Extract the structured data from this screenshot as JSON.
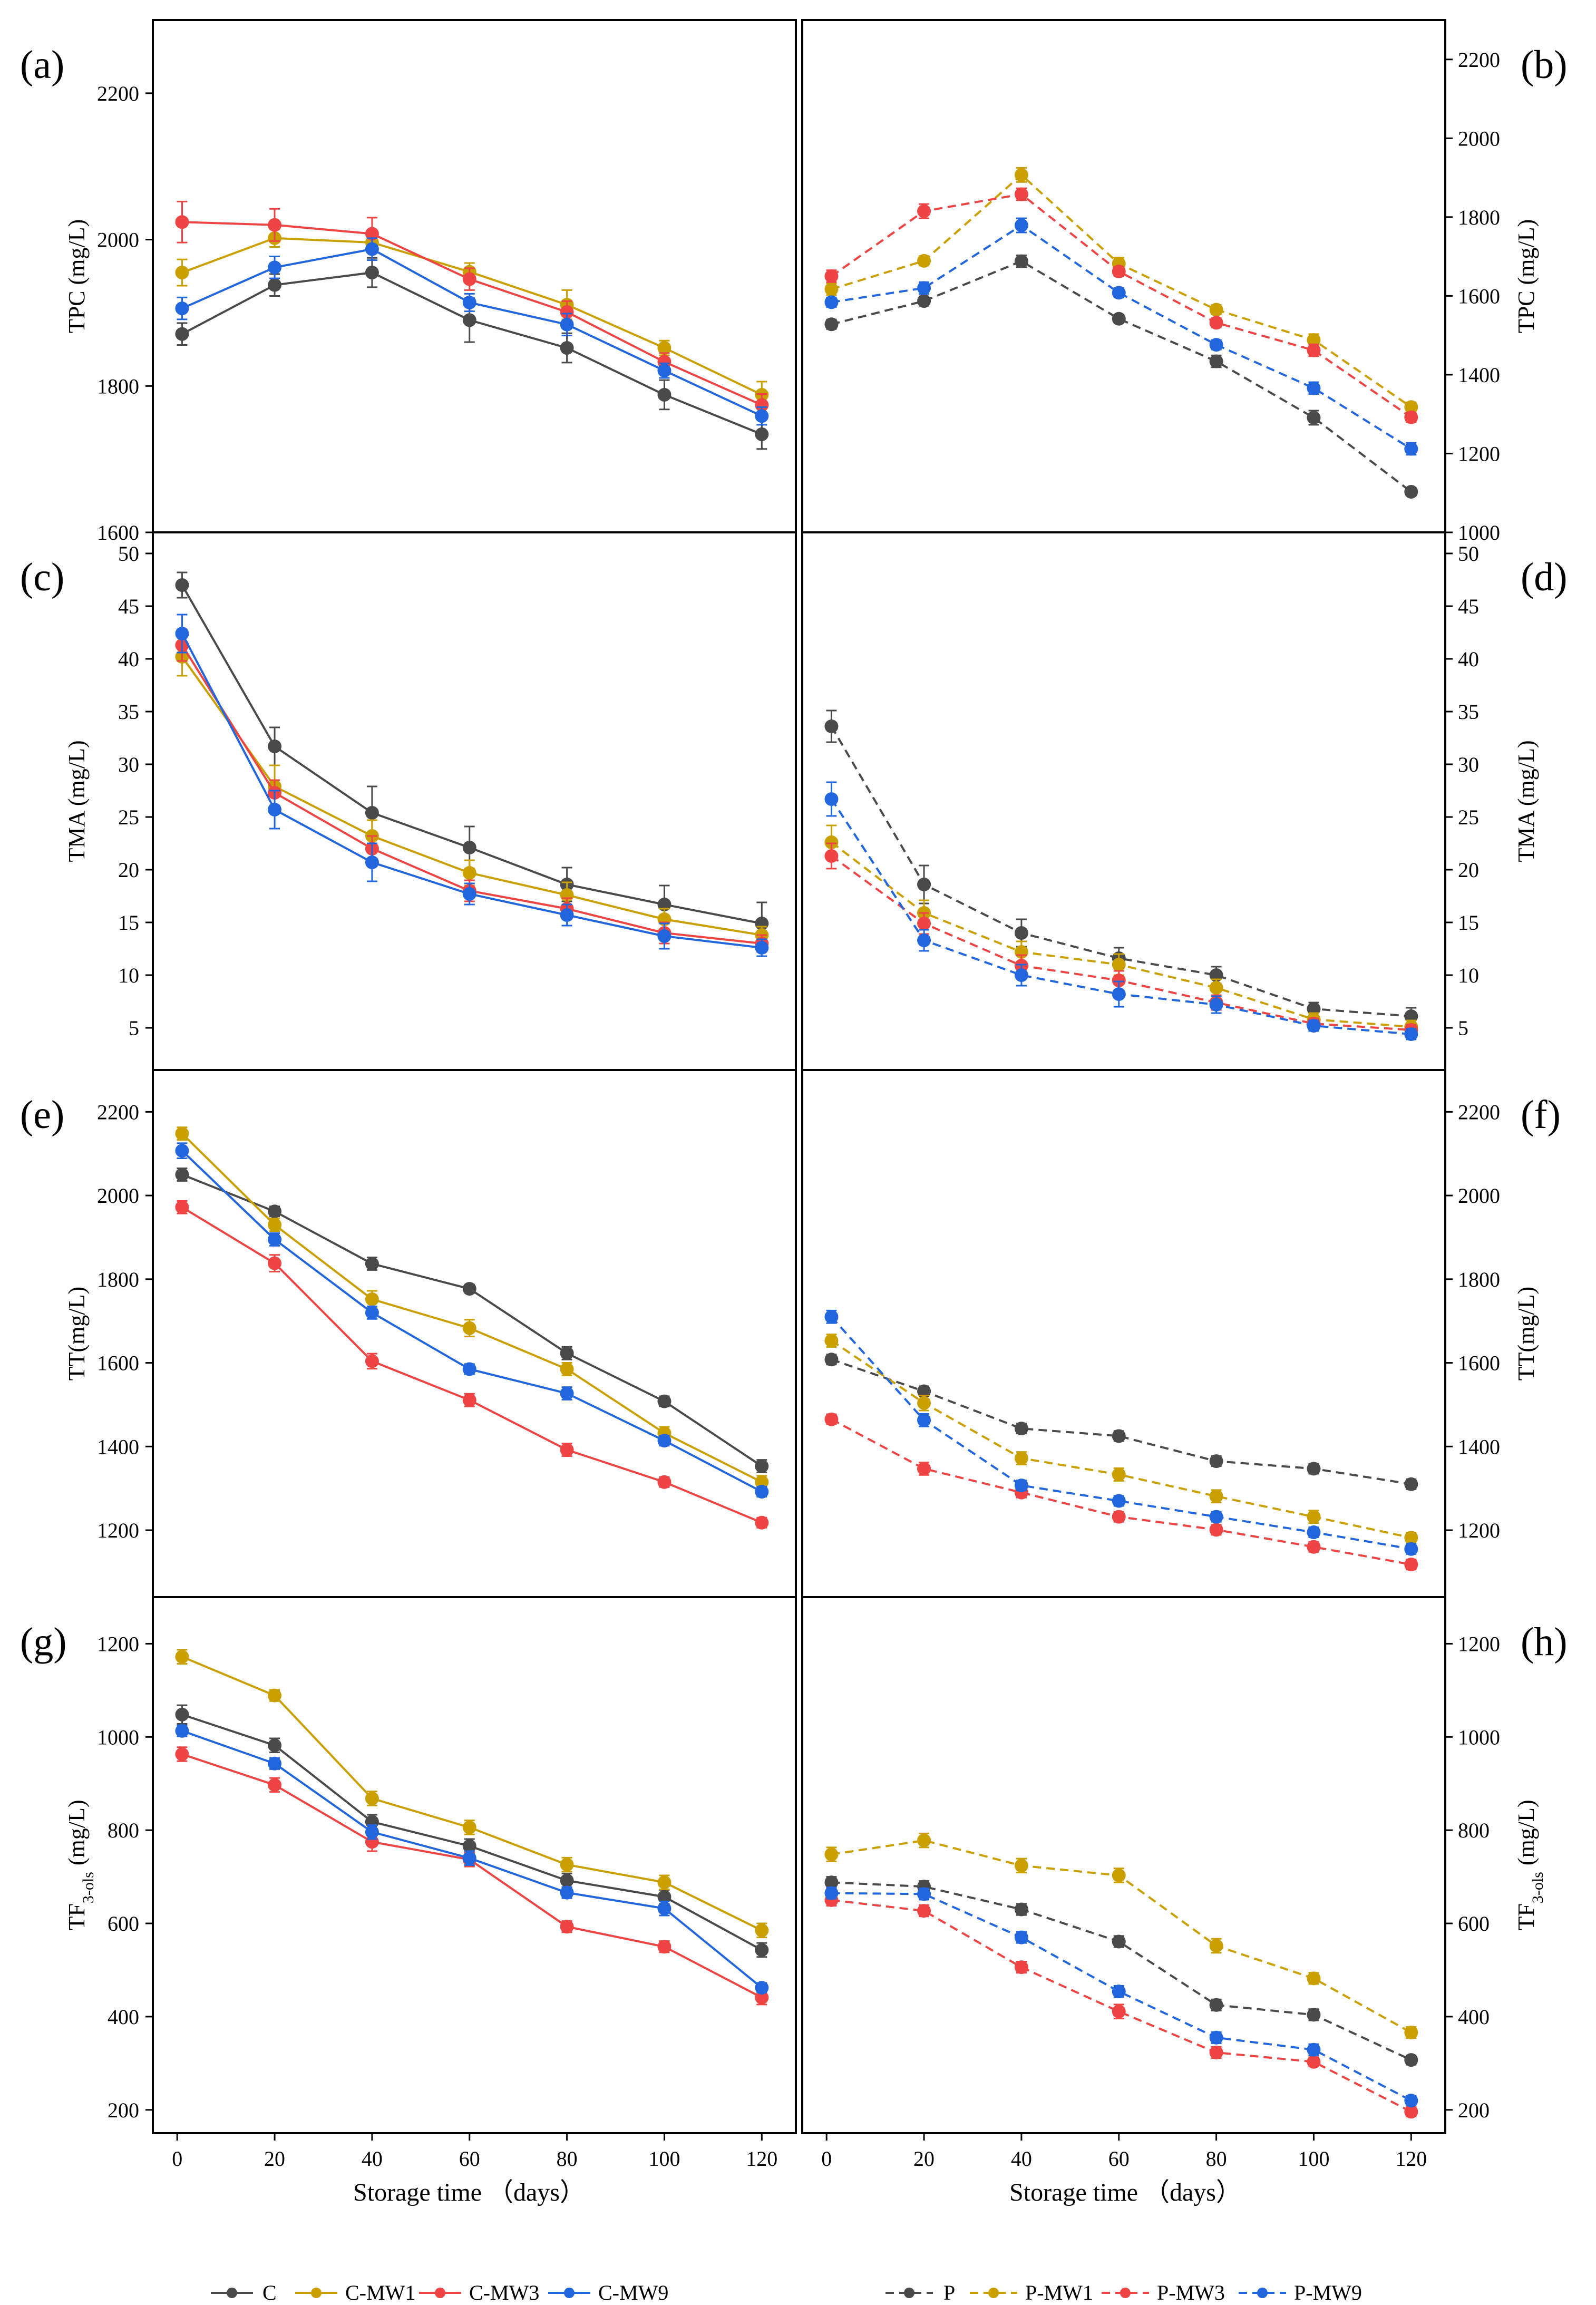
{
  "figure": {
    "x_label": "Storage time （days）",
    "x_ticks": [
      0,
      20,
      40,
      60,
      80,
      100,
      120
    ]
  },
  "legend_left": [
    "C",
    "C-MW1",
    "C-MW3",
    "C-MW9"
  ],
  "legend_right": [
    "P",
    "P-MW1",
    "P-MW3",
    "P-MW9"
  ],
  "colors": {
    "C": "#4a4a4a",
    "MW1": "#c9a000",
    "MW3": "#ee4444",
    "MW9": "#2266dd"
  },
  "chart_data": [
    {
      "panel": "(a)",
      "type": "line",
      "ylabel": "TPC (mg/L)",
      "line_style": "solid",
      "ylim": [
        1600,
        2300
      ],
      "yticks": [
        1600,
        1800,
        2000,
        2200
      ],
      "x": [
        1,
        20,
        40,
        60,
        80,
        100,
        120
      ],
      "series": [
        {
          "name": "C",
          "values": [
            1871,
            1938,
            1955,
            1890,
            1852,
            1788,
            1734
          ],
          "err": [
            15,
            15,
            20,
            30,
            20,
            20,
            20
          ]
        },
        {
          "name": "C-MW1",
          "values": [
            1955,
            2002,
            1996,
            1956,
            1911,
            1852,
            1788
          ],
          "err": [
            18,
            12,
            12,
            12,
            20,
            10,
            18
          ]
        },
        {
          "name": "C-MW3",
          "values": [
            2024,
            2020,
            2008,
            1946,
            1901,
            1833,
            1774
          ],
          "err": [
            28,
            22,
            22,
            15,
            15,
            12,
            15
          ]
        },
        {
          "name": "C-MW9",
          "values": [
            1906,
            1962,
            1987,
            1914,
            1884,
            1821,
            1759
          ],
          "err": [
            15,
            15,
            15,
            12,
            15,
            10,
            12
          ]
        }
      ]
    },
    {
      "panel": "(b)",
      "type": "line",
      "ylabel": "TPC (mg/L)",
      "line_style": "dashed",
      "ylim": [
        1000,
        2300
      ],
      "yticks": [
        1000,
        1200,
        1400,
        1600,
        1800,
        2000,
        2200
      ],
      "x": [
        1,
        20,
        40,
        60,
        80,
        100,
        120
      ],
      "series": [
        {
          "name": "P",
          "values": [
            1528,
            1587,
            1688,
            1542,
            1434,
            1291,
            1103
          ],
          "err": [
            12,
            12,
            15,
            10,
            15,
            18,
            10
          ]
        },
        {
          "name": "P-MW1",
          "values": [
            1617,
            1689,
            1907,
            1682,
            1565,
            1488,
            1318
          ],
          "err": [
            15,
            12,
            18,
            15,
            12,
            15,
            12
          ]
        },
        {
          "name": "P-MW3",
          "values": [
            1650,
            1815,
            1858,
            1662,
            1532,
            1462,
            1292
          ],
          "err": [
            15,
            18,
            15,
            12,
            12,
            15,
            12
          ]
        },
        {
          "name": "P-MW9",
          "values": [
            1584,
            1620,
            1779,
            1608,
            1476,
            1366,
            1212
          ],
          "err": [
            12,
            15,
            18,
            12,
            12,
            15,
            15
          ]
        }
      ]
    },
    {
      "panel": "(c)",
      "type": "line",
      "ylabel": "TMA (mg/L)",
      "line_style": "solid",
      "ylim": [
        1,
        52
      ],
      "yticks": [
        5,
        10,
        15,
        20,
        25,
        30,
        35,
        40,
        45,
        50
      ],
      "x": [
        1,
        20,
        40,
        60,
        80,
        100,
        120
      ],
      "series": [
        {
          "name": "C",
          "values": [
            47.0,
            31.7,
            25.4,
            22.1,
            18.6,
            16.7,
            14.9
          ],
          "err": [
            1.2,
            1.8,
            2.5,
            2.0,
            1.6,
            1.8,
            2.0
          ]
        },
        {
          "name": "C-MW1",
          "values": [
            40.2,
            27.9,
            23.2,
            19.7,
            17.6,
            15.3,
            13.8
          ],
          "err": [
            1.8,
            2.0,
            1.5,
            1.2,
            1.2,
            1.0,
            0.8
          ]
        },
        {
          "name": "C-MW3",
          "values": [
            41.3,
            27.3,
            22.0,
            18.0,
            16.3,
            14.0,
            13.0
          ],
          "err": [
            1.5,
            1.2,
            1.2,
            1.0,
            1.0,
            1.0,
            0.8
          ]
        },
        {
          "name": "C-MW9",
          "values": [
            42.4,
            25.7,
            20.7,
            17.7,
            15.7,
            13.7,
            12.6
          ],
          "err": [
            1.8,
            1.8,
            1.8,
            1.0,
            1.0,
            1.2,
            0.8
          ]
        }
      ]
    },
    {
      "panel": "(d)",
      "type": "line",
      "ylabel": "TMA (mg/L)",
      "line_style": "dashed",
      "ylim": [
        1,
        52
      ],
      "yticks": [
        5,
        10,
        15,
        20,
        25,
        30,
        35,
        40,
        45,
        50
      ],
      "x": [
        1,
        20,
        40,
        60,
        80,
        100,
        120
      ],
      "series": [
        {
          "name": "P",
          "values": [
            33.6,
            18.6,
            14.0,
            11.6,
            10.0,
            6.8,
            6.1
          ],
          "err": [
            1.5,
            1.8,
            1.3,
            1.0,
            0.8,
            0.6,
            0.8
          ]
        },
        {
          "name": "P-MW1",
          "values": [
            22.6,
            15.9,
            12.2,
            11.0,
            8.8,
            5.8,
            5.1
          ],
          "err": [
            1.6,
            1.2,
            1.0,
            1.0,
            0.8,
            0.6,
            0.6
          ]
        },
        {
          "name": "P-MW3",
          "values": [
            21.3,
            14.9,
            10.9,
            9.5,
            7.4,
            5.4,
            4.8
          ],
          "err": [
            1.2,
            1.0,
            1.0,
            0.9,
            0.7,
            0.5,
            0.5
          ]
        },
        {
          "name": "P-MW9",
          "values": [
            26.7,
            13.3,
            10.0,
            8.2,
            7.2,
            5.2,
            4.4
          ],
          "err": [
            1.6,
            1.0,
            1.0,
            1.2,
            0.8,
            0.5,
            0.5
          ]
        }
      ]
    },
    {
      "panel": "(e)",
      "type": "line",
      "ylabel": "TT(mg/L)",
      "line_style": "solid",
      "ylim": [
        1040,
        2300
      ],
      "yticks": [
        1200,
        1400,
        1600,
        1800,
        2000,
        2200
      ],
      "x": [
        1,
        20,
        40,
        60,
        80,
        100,
        120
      ],
      "series": [
        {
          "name": "C",
          "values": [
            2050,
            1962,
            1837,
            1777,
            1623,
            1508,
            1353
          ],
          "err": [
            15,
            12,
            15,
            10,
            15,
            12,
            15
          ]
        },
        {
          "name": "C-MW1",
          "values": [
            2148,
            1930,
            1752,
            1683,
            1585,
            1432,
            1315
          ],
          "err": [
            15,
            15,
            20,
            20,
            15,
            15,
            15
          ]
        },
        {
          "name": "C-MW3",
          "values": [
            1972,
            1838,
            1604,
            1511,
            1392,
            1315,
            1218
          ],
          "err": [
            15,
            20,
            18,
            15,
            15,
            12,
            12
          ]
        },
        {
          "name": "C-MW9",
          "values": [
            2107,
            1895,
            1720,
            1585,
            1527,
            1414,
            1292
          ],
          "err": [
            18,
            15,
            15,
            12,
            15,
            12,
            12
          ]
        }
      ]
    },
    {
      "panel": "(f)",
      "type": "line",
      "ylabel": "TT(mg/L)",
      "line_style": "dashed",
      "ylim": [
        1040,
        2300
      ],
      "yticks": [
        1200,
        1400,
        1600,
        1800,
        2000,
        2200
      ],
      "x": [
        1,
        20,
        40,
        60,
        80,
        100,
        120
      ],
      "series": [
        {
          "name": "P",
          "values": [
            1608,
            1532,
            1443,
            1425,
            1365,
            1347,
            1310
          ],
          "err": [
            12,
            12,
            12,
            12,
            12,
            12,
            12
          ]
        },
        {
          "name": "P-MW1",
          "values": [
            1653,
            1504,
            1372,
            1333,
            1281,
            1232,
            1182
          ],
          "err": [
            15,
            18,
            15,
            15,
            15,
            15,
            12
          ]
        },
        {
          "name": "P-MW3",
          "values": [
            1465,
            1347,
            1290,
            1232,
            1201,
            1160,
            1118
          ],
          "err": [
            12,
            15,
            12,
            12,
            12,
            12,
            12
          ]
        },
        {
          "name": "P-MW9",
          "values": [
            1710,
            1463,
            1307,
            1270,
            1232,
            1195,
            1155
          ],
          "err": [
            15,
            15,
            12,
            12,
            12,
            12,
            12
          ]
        }
      ]
    },
    {
      "panel": "(g)",
      "type": "line",
      "ylabel": "TF3-ols (mg/L)",
      "ylabel_base": "TF",
      "ylabel_sub": "3-ols",
      "ylabel_unit": "(mg/L)",
      "line_style": "solid",
      "ylim": [
        150,
        1300
      ],
      "yticks": [
        200,
        400,
        600,
        800,
        1000,
        1200
      ],
      "x": [
        1,
        20,
        40,
        60,
        80,
        100,
        120
      ],
      "series": [
        {
          "name": "C",
          "values": [
            1048,
            982,
            818,
            766,
            692,
            657,
            543
          ],
          "err": [
            20,
            15,
            15,
            15,
            15,
            15,
            15
          ]
        },
        {
          "name": "C-MW1",
          "values": [
            1172,
            1089,
            868,
            806,
            726,
            688,
            585
          ],
          "err": [
            15,
            12,
            15,
            15,
            15,
            15,
            15
          ]
        },
        {
          "name": "C-MW3",
          "values": [
            963,
            897,
            775,
            737,
            593,
            550,
            441
          ],
          "err": [
            15,
            15,
            20,
            15,
            12,
            12,
            15
          ]
        },
        {
          "name": "C-MW9",
          "values": [
            1013,
            943,
            796,
            740,
            666,
            632,
            462
          ],
          "err": [
            12,
            12,
            15,
            15,
            12,
            15,
            10
          ]
        }
      ]
    },
    {
      "panel": "(h)",
      "type": "line",
      "ylabel": "TF3-ols (mg/L)",
      "ylabel_base": "TF",
      "ylabel_sub": "3-ols",
      "ylabel_unit": "(mg/L)",
      "line_style": "dashed",
      "ylim": [
        150,
        1300
      ],
      "yticks": [
        200,
        400,
        600,
        800,
        1000,
        1200
      ],
      "x": [
        1,
        20,
        40,
        60,
        80,
        100,
        120
      ],
      "series": [
        {
          "name": "P",
          "values": [
            688,
            679,
            630,
            561,
            425,
            404,
            307
          ],
          "err": [
            12,
            12,
            12,
            12,
            12,
            12,
            10
          ]
        },
        {
          "name": "P-MW1",
          "values": [
            748,
            778,
            724,
            703,
            552,
            482,
            366
          ],
          "err": [
            15,
            15,
            15,
            15,
            15,
            12,
            12
          ]
        },
        {
          "name": "P-MW3",
          "values": [
            650,
            627,
            506,
            411,
            323,
            303,
            196
          ],
          "err": [
            12,
            12,
            12,
            15,
            12,
            10,
            10
          ]
        },
        {
          "name": "P-MW9",
          "values": [
            665,
            663,
            570,
            454,
            355,
            329,
            220
          ],
          "err": [
            12,
            12,
            12,
            12,
            12,
            12,
            10
          ]
        }
      ]
    }
  ]
}
